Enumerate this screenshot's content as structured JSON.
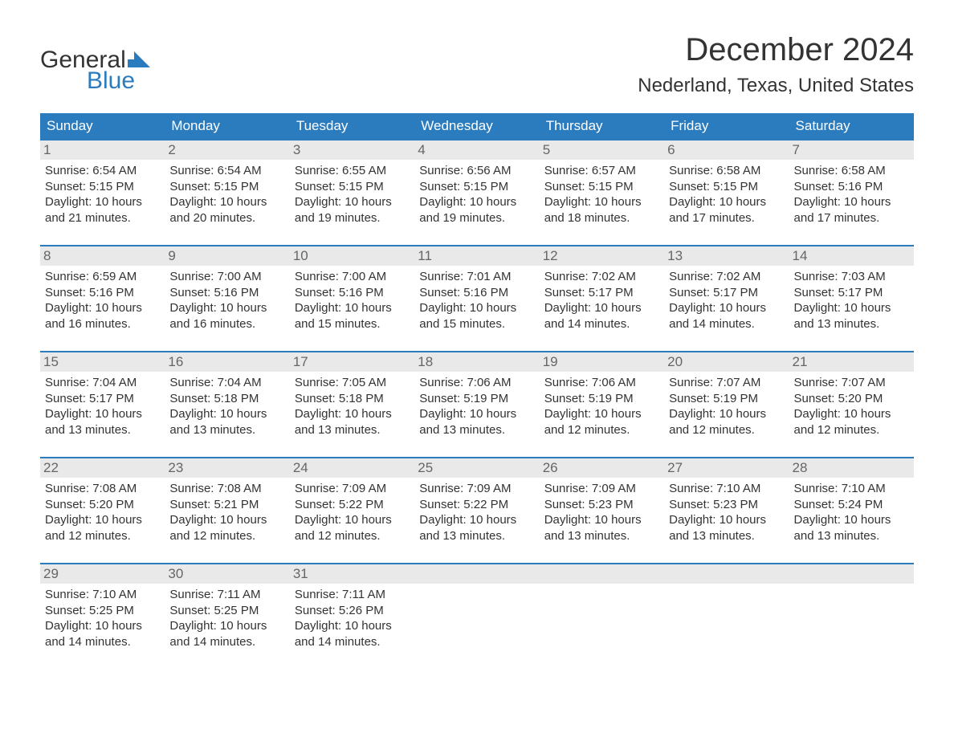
{
  "logo": {
    "text_top": "General",
    "text_bottom": "Blue",
    "flag_color": "#2b7bbf"
  },
  "title": "December 2024",
  "location": "Nederland, Texas, United States",
  "header_bg": "#2b7bbf",
  "header_text_color": "#ffffff",
  "daynum_bg": "#e9e9e9",
  "week_border_color": "#2b7bbf",
  "days_of_week": [
    "Sunday",
    "Monday",
    "Tuesday",
    "Wednesday",
    "Thursday",
    "Friday",
    "Saturday"
  ],
  "weeks": [
    [
      {
        "n": "1",
        "sunrise": "Sunrise: 6:54 AM",
        "sunset": "Sunset: 5:15 PM",
        "dl1": "Daylight: 10 hours",
        "dl2": "and 21 minutes."
      },
      {
        "n": "2",
        "sunrise": "Sunrise: 6:54 AM",
        "sunset": "Sunset: 5:15 PM",
        "dl1": "Daylight: 10 hours",
        "dl2": "and 20 minutes."
      },
      {
        "n": "3",
        "sunrise": "Sunrise: 6:55 AM",
        "sunset": "Sunset: 5:15 PM",
        "dl1": "Daylight: 10 hours",
        "dl2": "and 19 minutes."
      },
      {
        "n": "4",
        "sunrise": "Sunrise: 6:56 AM",
        "sunset": "Sunset: 5:15 PM",
        "dl1": "Daylight: 10 hours",
        "dl2": "and 19 minutes."
      },
      {
        "n": "5",
        "sunrise": "Sunrise: 6:57 AM",
        "sunset": "Sunset: 5:15 PM",
        "dl1": "Daylight: 10 hours",
        "dl2": "and 18 minutes."
      },
      {
        "n": "6",
        "sunrise": "Sunrise: 6:58 AM",
        "sunset": "Sunset: 5:15 PM",
        "dl1": "Daylight: 10 hours",
        "dl2": "and 17 minutes."
      },
      {
        "n": "7",
        "sunrise": "Sunrise: 6:58 AM",
        "sunset": "Sunset: 5:16 PM",
        "dl1": "Daylight: 10 hours",
        "dl2": "and 17 minutes."
      }
    ],
    [
      {
        "n": "8",
        "sunrise": "Sunrise: 6:59 AM",
        "sunset": "Sunset: 5:16 PM",
        "dl1": "Daylight: 10 hours",
        "dl2": "and 16 minutes."
      },
      {
        "n": "9",
        "sunrise": "Sunrise: 7:00 AM",
        "sunset": "Sunset: 5:16 PM",
        "dl1": "Daylight: 10 hours",
        "dl2": "and 16 minutes."
      },
      {
        "n": "10",
        "sunrise": "Sunrise: 7:00 AM",
        "sunset": "Sunset: 5:16 PM",
        "dl1": "Daylight: 10 hours",
        "dl2": "and 15 minutes."
      },
      {
        "n": "11",
        "sunrise": "Sunrise: 7:01 AM",
        "sunset": "Sunset: 5:16 PM",
        "dl1": "Daylight: 10 hours",
        "dl2": "and 15 minutes."
      },
      {
        "n": "12",
        "sunrise": "Sunrise: 7:02 AM",
        "sunset": "Sunset: 5:17 PM",
        "dl1": "Daylight: 10 hours",
        "dl2": "and 14 minutes."
      },
      {
        "n": "13",
        "sunrise": "Sunrise: 7:02 AM",
        "sunset": "Sunset: 5:17 PM",
        "dl1": "Daylight: 10 hours",
        "dl2": "and 14 minutes."
      },
      {
        "n": "14",
        "sunrise": "Sunrise: 7:03 AM",
        "sunset": "Sunset: 5:17 PM",
        "dl1": "Daylight: 10 hours",
        "dl2": "and 13 minutes."
      }
    ],
    [
      {
        "n": "15",
        "sunrise": "Sunrise: 7:04 AM",
        "sunset": "Sunset: 5:17 PM",
        "dl1": "Daylight: 10 hours",
        "dl2": "and 13 minutes."
      },
      {
        "n": "16",
        "sunrise": "Sunrise: 7:04 AM",
        "sunset": "Sunset: 5:18 PM",
        "dl1": "Daylight: 10 hours",
        "dl2": "and 13 minutes."
      },
      {
        "n": "17",
        "sunrise": "Sunrise: 7:05 AM",
        "sunset": "Sunset: 5:18 PM",
        "dl1": "Daylight: 10 hours",
        "dl2": "and 13 minutes."
      },
      {
        "n": "18",
        "sunrise": "Sunrise: 7:06 AM",
        "sunset": "Sunset: 5:19 PM",
        "dl1": "Daylight: 10 hours",
        "dl2": "and 13 minutes."
      },
      {
        "n": "19",
        "sunrise": "Sunrise: 7:06 AM",
        "sunset": "Sunset: 5:19 PM",
        "dl1": "Daylight: 10 hours",
        "dl2": "and 12 minutes."
      },
      {
        "n": "20",
        "sunrise": "Sunrise: 7:07 AM",
        "sunset": "Sunset: 5:19 PM",
        "dl1": "Daylight: 10 hours",
        "dl2": "and 12 minutes."
      },
      {
        "n": "21",
        "sunrise": "Sunrise: 7:07 AM",
        "sunset": "Sunset: 5:20 PM",
        "dl1": "Daylight: 10 hours",
        "dl2": "and 12 minutes."
      }
    ],
    [
      {
        "n": "22",
        "sunrise": "Sunrise: 7:08 AM",
        "sunset": "Sunset: 5:20 PM",
        "dl1": "Daylight: 10 hours",
        "dl2": "and 12 minutes."
      },
      {
        "n": "23",
        "sunrise": "Sunrise: 7:08 AM",
        "sunset": "Sunset: 5:21 PM",
        "dl1": "Daylight: 10 hours",
        "dl2": "and 12 minutes."
      },
      {
        "n": "24",
        "sunrise": "Sunrise: 7:09 AM",
        "sunset": "Sunset: 5:22 PM",
        "dl1": "Daylight: 10 hours",
        "dl2": "and 12 minutes."
      },
      {
        "n": "25",
        "sunrise": "Sunrise: 7:09 AM",
        "sunset": "Sunset: 5:22 PM",
        "dl1": "Daylight: 10 hours",
        "dl2": "and 13 minutes."
      },
      {
        "n": "26",
        "sunrise": "Sunrise: 7:09 AM",
        "sunset": "Sunset: 5:23 PM",
        "dl1": "Daylight: 10 hours",
        "dl2": "and 13 minutes."
      },
      {
        "n": "27",
        "sunrise": "Sunrise: 7:10 AM",
        "sunset": "Sunset: 5:23 PM",
        "dl1": "Daylight: 10 hours",
        "dl2": "and 13 minutes."
      },
      {
        "n": "28",
        "sunrise": "Sunrise: 7:10 AM",
        "sunset": "Sunset: 5:24 PM",
        "dl1": "Daylight: 10 hours",
        "dl2": "and 13 minutes."
      }
    ],
    [
      {
        "n": "29",
        "sunrise": "Sunrise: 7:10 AM",
        "sunset": "Sunset: 5:25 PM",
        "dl1": "Daylight: 10 hours",
        "dl2": "and 14 minutes."
      },
      {
        "n": "30",
        "sunrise": "Sunrise: 7:11 AM",
        "sunset": "Sunset: 5:25 PM",
        "dl1": "Daylight: 10 hours",
        "dl2": "and 14 minutes."
      },
      {
        "n": "31",
        "sunrise": "Sunrise: 7:11 AM",
        "sunset": "Sunset: 5:26 PM",
        "dl1": "Daylight: 10 hours",
        "dl2": "and 14 minutes."
      },
      {
        "empty": true
      },
      {
        "empty": true
      },
      {
        "empty": true
      },
      {
        "empty": true
      }
    ]
  ]
}
